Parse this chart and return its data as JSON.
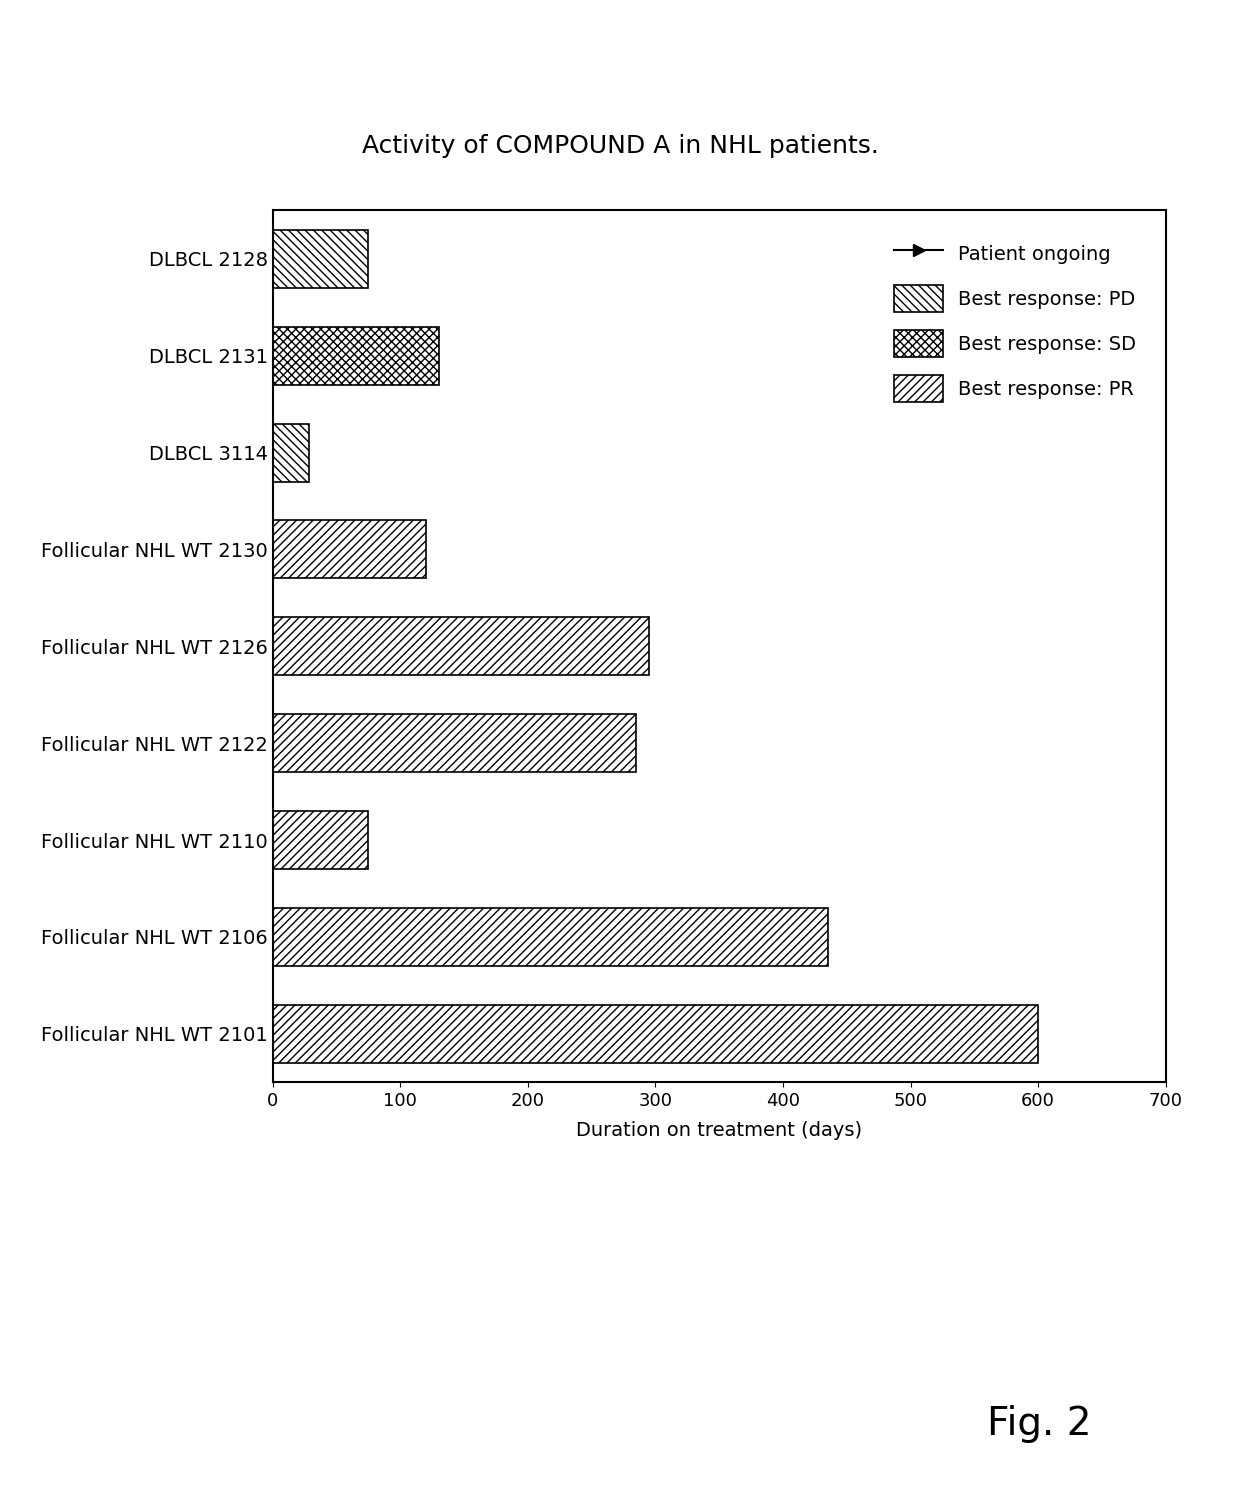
{
  "title": "Activity of COMPOUND A in NHL patients.",
  "xlabel": "Duration on treatment (days)",
  "patients": [
    {
      "label": "Follicular NHL WT 2101",
      "value": 600,
      "response": "PR"
    },
    {
      "label": "Follicular NHL WT 2106",
      "value": 435,
      "response": "PR"
    },
    {
      "label": "Follicular NHL WT 2110",
      "value": 75,
      "response": "PR"
    },
    {
      "label": "Follicular NHL WT 2122",
      "value": 285,
      "response": "PR"
    },
    {
      "label": "Follicular NHL WT 2126",
      "value": 295,
      "response": "PR"
    },
    {
      "label": "Follicular NHL WT 2130",
      "value": 120,
      "response": "PR"
    },
    {
      "label": "DLBCL 3114",
      "value": 28,
      "response": "PD"
    },
    {
      "label": "DLBCL 2131",
      "value": 130,
      "response": "SD"
    },
    {
      "label": "DLBCL 2128",
      "value": 75,
      "response": "PD"
    }
  ],
  "xlim": [
    0,
    700
  ],
  "xticks": [
    0,
    100,
    200,
    300,
    400,
    500,
    600,
    700
  ],
  "title_fontsize": 18,
  "label_fontsize": 14,
  "tick_fontsize": 13,
  "legend_fontsize": 14,
  "fig_label": "Fig. 2",
  "background_color": "#ffffff",
  "bar_color": "#ffffff",
  "edge_color": "#000000"
}
